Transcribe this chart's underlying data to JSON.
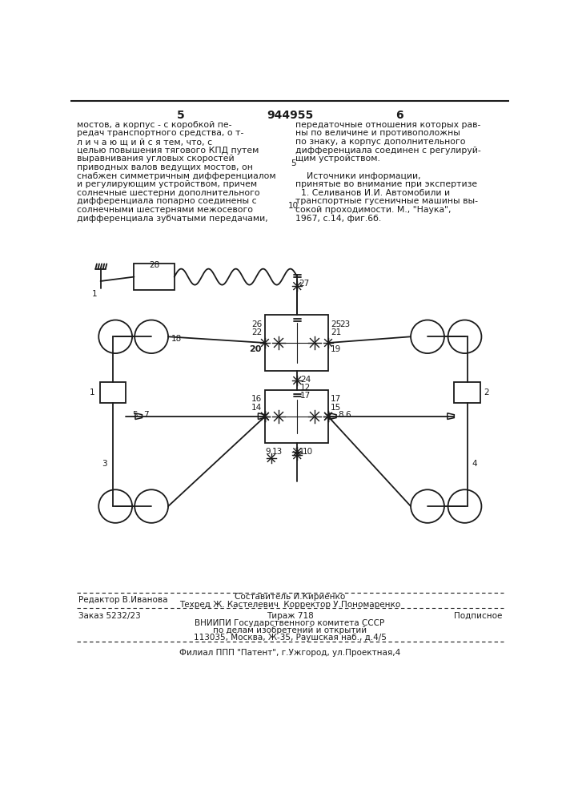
{
  "page_bg": "#ffffff",
  "text_color": "#1a1a1a",
  "line_color": "#1a1a1a",
  "title_number": "944955",
  "page_left": "5",
  "page_right": "6",
  "left_col_text": [
    "мостов, а корпус - с коробкой пе-",
    "редач транспортного средства, о т-",
    "л и ч а ю щ и й с я тем, что, с",
    "целью повышения тягового КПД путем",
    "выравнивания угловых скоростей",
    "приводных валов ведущих мостов, он",
    "снабжен симметричным дифференциалом",
    "и регулирующим устройством, причем",
    "солнечные шестерни дополнительного",
    "дифференциала попарно соединены с",
    "солнечными шестернями межосевого",
    "дифференциала зубчатыми передачами,"
  ],
  "right_col_text": [
    "передаточные отношения которых рав-",
    "ны по величине и противоположны",
    "по знаку, а корпус дополнительного",
    "дифференциала соединен с регулируй-",
    "щим устройством.",
    "",
    "    Источники информации,",
    "принятые во внимание при экспертизе",
    "  1. Селиванов И.И. Автомобили и",
    "транспортные гусеничные машины вы-",
    "сокой проходимости. М., \"Наука\",",
    "1967, с.14, фиг.6б."
  ],
  "line_num_5": "5",
  "line_num_10": "10",
  "footer_editor": "Редактор В.Иванова",
  "footer_compiler": "Составитель И.Кириенко",
  "footer_techred": "Техред Ж. Кастелевич",
  "footer_corrector": "Корректор У.Пономаренко",
  "footer_order": "Заказ 5232/23",
  "footer_tirazh": "Тираж 718",
  "footer_podpisnoe": "Подписное",
  "footer_vniip1": "ВНИИПИ Государственного комитета СССР",
  "footer_vniip2": "по делам изобретений и открытий",
  "footer_vniip3": "113035, Москва, Ж-35, Раушская наб., д.4/5",
  "footer_filial": "Филиал ППП \"Патент\", г.Ужгород, ул.Проектная,4"
}
